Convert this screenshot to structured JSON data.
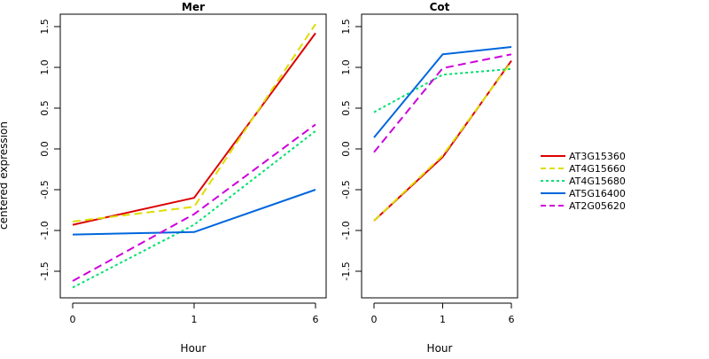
{
  "figure": {
    "ylabel": "centered expression",
    "legend_position": "right"
  },
  "chart_data": [
    {
      "type": "line",
      "title": "Mer",
      "xlabel": "Hour",
      "x": [
        "0",
        "1",
        "6"
      ],
      "yticks": [
        "-1.5",
        "-1.0",
        "-0.5",
        "0.0",
        "0.5",
        "1.0",
        "1.5"
      ],
      "ylim": [
        -1.8,
        1.65
      ],
      "grid": false,
      "series": [
        {
          "name": "AT3G15360",
          "values": [
            -0.93,
            -0.6,
            1.42
          ]
        },
        {
          "name": "AT4G15660",
          "values": [
            -0.89,
            -0.71,
            1.53
          ]
        },
        {
          "name": "AT4G15680",
          "values": [
            -1.7,
            -0.93,
            0.22
          ]
        },
        {
          "name": "AT5G16400",
          "values": [
            -1.05,
            -1.02,
            -0.5
          ]
        },
        {
          "name": "AT2G05620",
          "values": [
            -1.62,
            -0.8,
            0.3
          ]
        }
      ]
    },
    {
      "type": "line",
      "title": "Cot",
      "xlabel": "Hour",
      "x": [
        "0",
        "1",
        "6"
      ],
      "yticks": [
        "-1.5",
        "-1.0",
        "-0.5",
        "0.0",
        "0.5",
        "1.0",
        "1.5"
      ],
      "ylim": [
        -1.8,
        1.65
      ],
      "grid": false,
      "series": [
        {
          "name": "AT3G15360",
          "values": [
            -0.88,
            -0.1,
            1.08
          ]
        },
        {
          "name": "AT4G15660",
          "values": [
            -0.88,
            -0.08,
            1.07
          ]
        },
        {
          "name": "AT4G15680",
          "values": [
            0.45,
            0.91,
            0.98
          ]
        },
        {
          "name": "AT5G16400",
          "values": [
            0.14,
            1.16,
            1.25
          ]
        },
        {
          "name": "AT2G05620",
          "values": [
            -0.04,
            0.99,
            1.16
          ]
        }
      ]
    }
  ],
  "legend": [
    {
      "name": "AT3G15360",
      "color": "#dd0000",
      "dash": "solid"
    },
    {
      "name": "AT4G15660",
      "color": "#dddd00",
      "dash": "dashed"
    },
    {
      "name": "AT4G15680",
      "color": "#00e070",
      "dash": "dotted"
    },
    {
      "name": "AT5G16400",
      "color": "#0066dd",
      "dash": "solid"
    },
    {
      "name": "AT2G05620",
      "color": "#cc00dd",
      "dash": "dashed"
    }
  ]
}
